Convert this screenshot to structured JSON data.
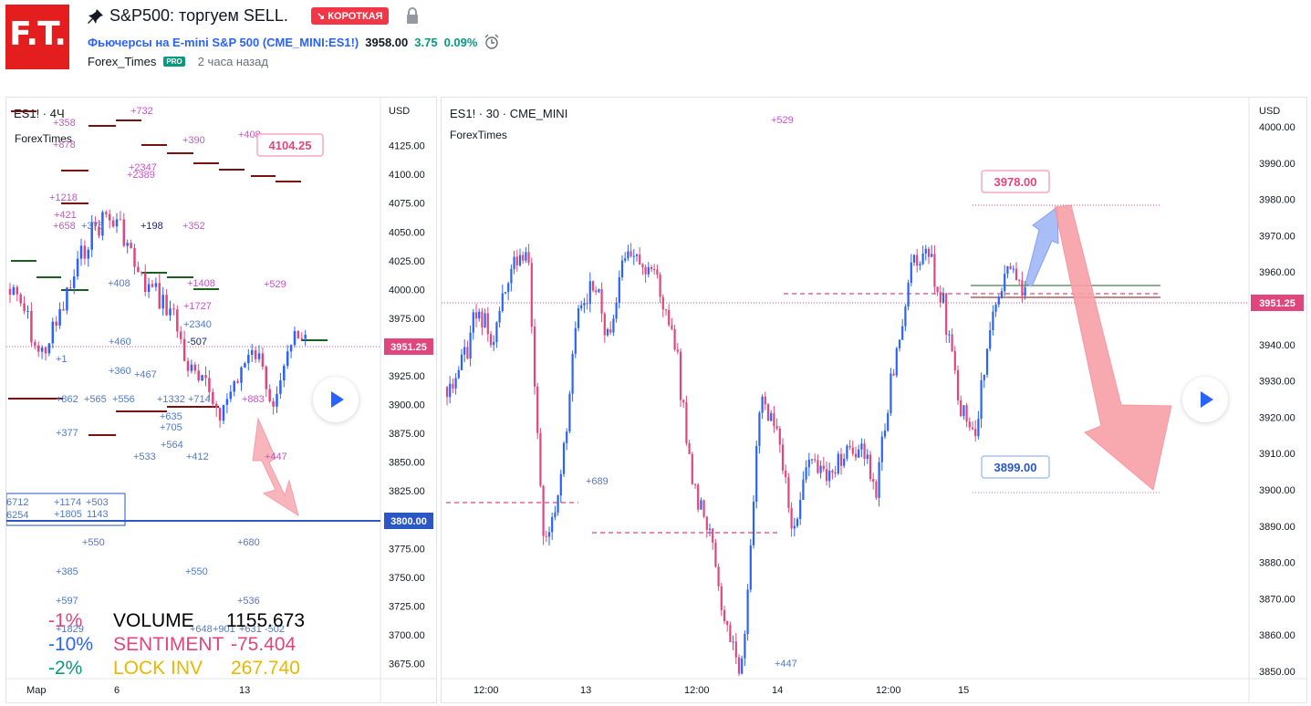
{
  "header": {
    "title": "S&P500: торгуем SELL.",
    "badge": "↘ КОРОТКАЯ",
    "logo_text": "F.T.",
    "symbol_desc": "Фьючерсы на E-mini S&P 500",
    "symbol_code": "(CME_MINI:ES1!)",
    "price": "3958.00",
    "change": "3.75",
    "change_pct": "0.09%",
    "author": "Forex_Times",
    "pro_badge": "PRO",
    "time_ago": "2 часа назад",
    "icons": [
      "pin-icon",
      "lock-icon",
      "alarm-clock-icon"
    ]
  },
  "left_chart": {
    "title": "ES1! · 4Ч",
    "author": "ForexTimes",
    "currency": "USD",
    "y_ticks": [
      "4125.00",
      "4100.00",
      "4075.00",
      "4050.00",
      "4025.00",
      "4000.00",
      "3975.00",
      "3925.00",
      "3900.00",
      "3875.00",
      "3850.00",
      "3825.00",
      "3775.00",
      "3750.00",
      "3725.00",
      "3700.00",
      "3675.00"
    ],
    "x_ticks": [
      "Мар",
      "6",
      "13"
    ],
    "price_badge": "3951.25",
    "level_badge": "3800.00",
    "callout": "4104.25",
    "annotations": [
      "+358",
      "+732",
      "+878",
      "+390",
      "+408",
      "+2347",
      "+2389",
      "+1218",
      "+421",
      "+658",
      "+375",
      "+198",
      "+352",
      "+408",
      "+1408",
      "+529",
      "+1727",
      "+2340",
      "+460",
      "-507",
      "+1",
      "+360",
      "+467",
      "+862",
      "+565",
      "+556",
      "+1332",
      "+714",
      "+883",
      "+377",
      "+635",
      "+705",
      "+564",
      "+533",
      "+412",
      "+447",
      "6712",
      "6254",
      "+1174",
      "+503",
      "+1805",
      "1143",
      "+550",
      "+680",
      "+385",
      "+550",
      "+597",
      "+536",
      "+1829",
      "+648",
      "+901",
      "+631",
      "-502"
    ],
    "stats": [
      {
        "pct": "-1%",
        "label": "VOLUME",
        "value": "1155.673"
      },
      {
        "pct": "-10%",
        "label": "SENTIMENT",
        "value": "-75.404"
      },
      {
        "pct": "-2%",
        "label": "LOCK INV",
        "value": "267.740"
      }
    ],
    "colors": {
      "up": "#2962ff",
      "down": "#e0467c",
      "stats_volume": "#000000",
      "stats_sentiment": "#e0467c",
      "stats_lock": "#e6b800"
    }
  },
  "right_chart": {
    "title": "ES1! · 30 · CME_MINI",
    "author": "ForexTimes",
    "currency": "USD",
    "y_ticks": [
      "4000.00",
      "3990.00",
      "3980.00",
      "3970.00",
      "3960.00",
      "3940.00",
      "3930.00",
      "3920.00",
      "3910.00",
      "3900.00",
      "3890.00",
      "3880.00",
      "3870.00",
      "3860.00",
      "3850.00"
    ],
    "x_ticks": [
      "12:00",
      "13",
      "12:00",
      "14",
      "12:00",
      "15"
    ],
    "price_badge": "3951.25",
    "target_high": "3978.00",
    "target_low": "3899.00",
    "annotations": [
      "+529",
      "+689",
      "+447"
    ],
    "colors": {
      "up": "#2962ff",
      "down": "#e0467c",
      "arrow_up": "#a9bdf7",
      "arrow_down": "#f8a0a8"
    }
  }
}
